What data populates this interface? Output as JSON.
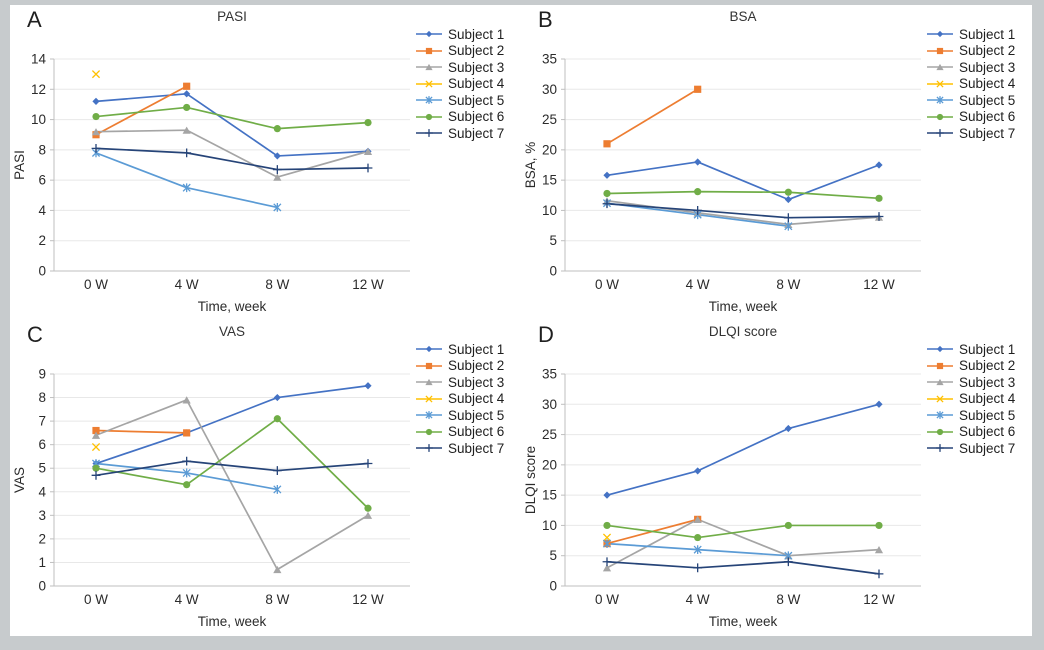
{
  "figure": {
    "panel_letters": [
      "A",
      "B",
      "C",
      "D"
    ],
    "frame_color": "#c7cbcd",
    "background_color": "#ffffff",
    "gridline_color": "#e8e8e8",
    "axis_color": "#bfbfbf"
  },
  "chart_data": [
    {
      "id": "A",
      "type": "line",
      "title": "PASI",
      "xlabel": "Time, week",
      "ylabel": "PASI",
      "categories": [
        "0 W",
        "4 W",
        "8 W",
        "12 W"
      ],
      "ylim": [
        0,
        14
      ],
      "ytick_step": 2,
      "grid": true,
      "legend_position": "right",
      "series": [
        {
          "name": "Subject 1",
          "color": "#4472C4",
          "marker": "diamond",
          "values": [
            11.2,
            11.7,
            7.6,
            7.9
          ]
        },
        {
          "name": "Subject 2",
          "color": "#ED7D31",
          "marker": "square",
          "values": [
            9.0,
            12.2,
            null,
            null
          ]
        },
        {
          "name": "Subject 3",
          "color": "#A5A5A5",
          "marker": "triangle",
          "values": [
            9.2,
            9.3,
            6.2,
            7.9
          ]
        },
        {
          "name": "Subject 4",
          "color": "#FFC000",
          "marker": "x",
          "values": [
            13.0,
            null,
            null,
            null
          ]
        },
        {
          "name": "Subject 5",
          "color": "#5B9BD5",
          "marker": "star",
          "values": [
            7.8,
            5.5,
            4.2,
            null
          ]
        },
        {
          "name": "Subject 6",
          "color": "#70AD47",
          "marker": "circle",
          "values": [
            10.2,
            10.8,
            9.4,
            9.8
          ]
        },
        {
          "name": "Subject 7",
          "color": "#264478",
          "marker": "plus",
          "values": [
            8.1,
            7.8,
            6.7,
            6.8
          ]
        }
      ]
    },
    {
      "id": "B",
      "type": "line",
      "title": "BSA",
      "xlabel": "Time, week",
      "ylabel": "BSA, %",
      "categories": [
        "0 W",
        "4 W",
        "8 W",
        "12 W"
      ],
      "ylim": [
        0,
        35
      ],
      "ytick_step": 5,
      "grid": true,
      "legend_position": "right",
      "series": [
        {
          "name": "Subject 1",
          "color": "#4472C4",
          "marker": "diamond",
          "values": [
            15.8,
            18.0,
            11.8,
            17.5
          ]
        },
        {
          "name": "Subject 2",
          "color": "#ED7D31",
          "marker": "square",
          "values": [
            21.0,
            30.0,
            null,
            null
          ]
        },
        {
          "name": "Subject 3",
          "color": "#A5A5A5",
          "marker": "triangle",
          "values": [
            11.6,
            9.6,
            7.7,
            8.9
          ]
        },
        {
          "name": "Subject 4",
          "color": "#FFC000",
          "marker": "x",
          "values": [
            null,
            null,
            null,
            null
          ]
        },
        {
          "name": "Subject 5",
          "color": "#5B9BD5",
          "marker": "star",
          "values": [
            11.2,
            9.3,
            7.4,
            null
          ]
        },
        {
          "name": "Subject 6",
          "color": "#70AD47",
          "marker": "circle",
          "values": [
            12.8,
            13.1,
            13.0,
            12.0
          ]
        },
        {
          "name": "Subject 7",
          "color": "#264478",
          "marker": "plus",
          "values": [
            11.1,
            10.0,
            8.8,
            9.0
          ]
        }
      ]
    },
    {
      "id": "C",
      "type": "line",
      "title": "VAS",
      "xlabel": "Time, week",
      "ylabel": "VAS",
      "categories": [
        "0 W",
        "4 W",
        "8 W",
        "12 W"
      ],
      "ylim": [
        0,
        9
      ],
      "ytick_step": 1,
      "grid": true,
      "legend_position": "right",
      "series": [
        {
          "name": "Subject 1",
          "color": "#4472C4",
          "marker": "diamond",
          "values": [
            5.2,
            6.5,
            8.0,
            8.5
          ]
        },
        {
          "name": "Subject 2",
          "color": "#ED7D31",
          "marker": "square",
          "values": [
            6.6,
            6.5,
            null,
            null
          ]
        },
        {
          "name": "Subject 3",
          "color": "#A5A5A5",
          "marker": "triangle",
          "values": [
            6.4,
            7.9,
            0.7,
            3.0
          ]
        },
        {
          "name": "Subject 4",
          "color": "#FFC000",
          "marker": "x",
          "values": [
            5.9,
            null,
            null,
            null
          ]
        },
        {
          "name": "Subject 5",
          "color": "#5B9BD5",
          "marker": "star",
          "values": [
            5.2,
            4.8,
            4.1,
            null
          ]
        },
        {
          "name": "Subject 6",
          "color": "#70AD47",
          "marker": "circle",
          "values": [
            5.0,
            4.3,
            7.1,
            3.3
          ]
        },
        {
          "name": "Subject 7",
          "color": "#264478",
          "marker": "plus",
          "values": [
            4.7,
            5.3,
            4.9,
            5.2
          ]
        }
      ]
    },
    {
      "id": "D",
      "type": "line",
      "title": "DLQI score",
      "xlabel": "Time, week",
      "ylabel": "DLQI score",
      "categories": [
        "0 W",
        "4 W",
        "8 W",
        "12 W"
      ],
      "ylim": [
        0,
        35
      ],
      "ytick_step": 5,
      "grid": true,
      "legend_position": "right",
      "series": [
        {
          "name": "Subject 1",
          "color": "#4472C4",
          "marker": "diamond",
          "values": [
            15,
            19,
            26,
            30
          ]
        },
        {
          "name": "Subject 2",
          "color": "#ED7D31",
          "marker": "square",
          "values": [
            7,
            11,
            null,
            null
          ]
        },
        {
          "name": "Subject 3",
          "color": "#A5A5A5",
          "marker": "triangle",
          "values": [
            3,
            11,
            5,
            6
          ]
        },
        {
          "name": "Subject 4",
          "color": "#FFC000",
          "marker": "x",
          "values": [
            8,
            null,
            null,
            null
          ]
        },
        {
          "name": "Subject 5",
          "color": "#5B9BD5",
          "marker": "star",
          "values": [
            7,
            6,
            5,
            null
          ]
        },
        {
          "name": "Subject 6",
          "color": "#70AD47",
          "marker": "circle",
          "values": [
            10,
            8,
            10,
            10
          ]
        },
        {
          "name": "Subject 7",
          "color": "#264478",
          "marker": "plus",
          "values": [
            4,
            3,
            4,
            2
          ]
        }
      ]
    }
  ]
}
